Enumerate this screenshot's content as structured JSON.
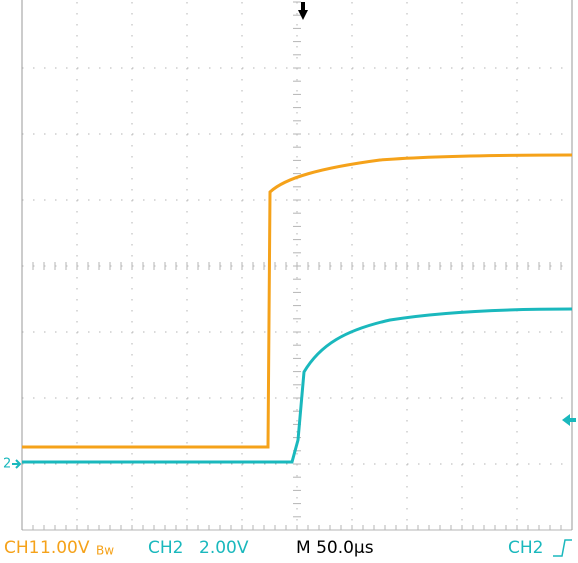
{
  "status_bar": {
    "ch1_label": "CH1",
    "ch1_scale": "1.00V",
    "ch1_bandwidth": "Bw",
    "ch2_label": "CH2",
    "ch2_scale": "2.00V",
    "timebase": "M 50.0µs",
    "trigger_source": "CH2"
  },
  "markers": {
    "ch2_ground": "2"
  }
}
